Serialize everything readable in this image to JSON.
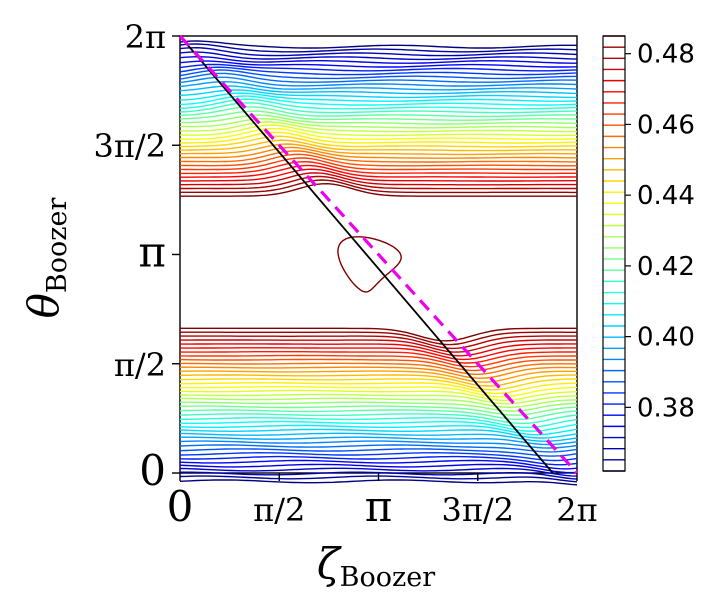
{
  "chart_data": {
    "type": "contour",
    "xlabel": "ζ",
    "xlabel_sub": "Boozer",
    "ylabel": "θ",
    "ylabel_sub": "Boozer",
    "xlim": [
      0,
      6.283185
    ],
    "ylim": [
      0,
      6.283185
    ],
    "x_ticks": [
      {
        "value": 0,
        "label": "0"
      },
      {
        "value": 1.570796,
        "label": "π/2"
      },
      {
        "value": 3.141593,
        "label": "π"
      },
      {
        "value": 4.712389,
        "label": "3π/2"
      },
      {
        "value": 6.283185,
        "label": "2π"
      }
    ],
    "y_ticks": [
      {
        "value": 0,
        "label": "0"
      },
      {
        "value": 1.570796,
        "label": "π/2"
      },
      {
        "value": 3.141593,
        "label": "π"
      },
      {
        "value": 4.712389,
        "label": "3π/2"
      },
      {
        "value": 6.283185,
        "label": "2π"
      }
    ],
    "colormap": "jet",
    "contour_levels": {
      "min": 0.362,
      "max": 0.485,
      "count": 40
    },
    "colorbar": {
      "range": [
        0.362,
        0.485
      ],
      "ticks": [
        {
          "value": 0.38,
          "label": "0.38"
        },
        {
          "value": 0.4,
          "label": "0.40"
        },
        {
          "value": 0.42,
          "label": "0.42"
        },
        {
          "value": 0.44,
          "label": "0.44"
        },
        {
          "value": 0.46,
          "label": "0.46"
        },
        {
          "value": 0.48,
          "label": "0.48"
        }
      ]
    },
    "overlay_lines": [
      {
        "style": "solid",
        "color": "#000000",
        "points": [
          [
            0,
            6.283185
          ],
          [
            5.9,
            0
          ]
        ]
      },
      {
        "style": "dashed",
        "color": "#ee00ee",
        "points": [
          [
            0,
            6.283185
          ],
          [
            6.283185,
            0
          ]
        ]
      }
    ],
    "features": {
      "island_center": [
        3.0,
        3.0
      ],
      "bands": [
        {
          "y_center": 3.98,
          "y_spread": 2.15,
          "direction": 1
        },
        {
          "y_center": 2.08,
          "y_spread": 2.2,
          "direction": -1
        }
      ]
    }
  }
}
